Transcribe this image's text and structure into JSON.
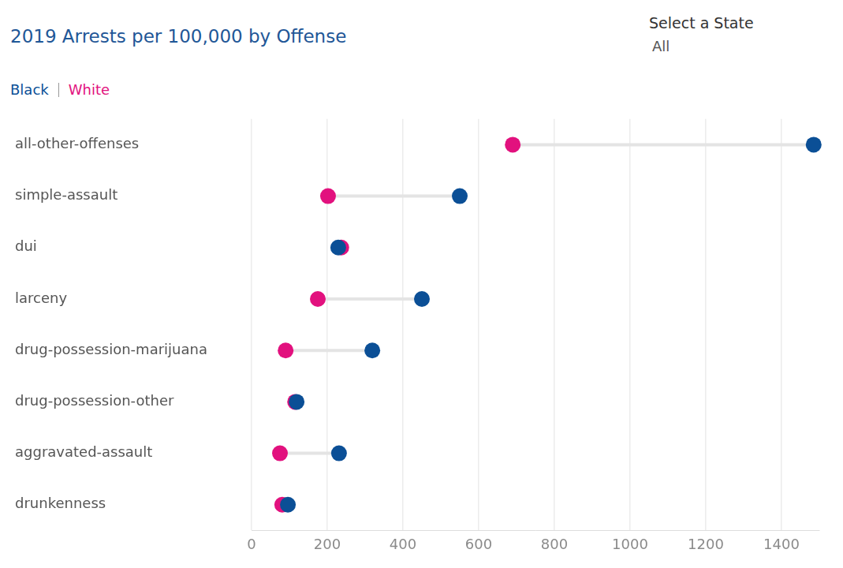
{
  "chart_data": {
    "type": "dumbbell",
    "title": "2019 Arrests per 100,000 by Offense",
    "orientation": "horizontal",
    "categories": [
      "all-other-offenses",
      "simple-assault",
      "dui",
      "larceny",
      "drug-possession-marijuana",
      "drug-possession-other",
      "aggravated-assault",
      "drunkenness"
    ],
    "series": [
      {
        "name": "Black",
        "color": "#0b4f96",
        "values": [
          1485,
          550,
          229,
          450,
          319,
          119,
          231,
          96
        ]
      },
      {
        "name": "White",
        "color": "#e2117e",
        "values": [
          690,
          202,
          237,
          175,
          90,
          115,
          75,
          81
        ]
      }
    ],
    "xlim": [
      0,
      1500
    ],
    "xticks": [
      0,
      200,
      400,
      600,
      800,
      1000,
      1200,
      1400
    ],
    "grid": true,
    "legend": "top left",
    "marker": "circle"
  },
  "state_selector": {
    "label": "Select a State",
    "value": "All"
  }
}
